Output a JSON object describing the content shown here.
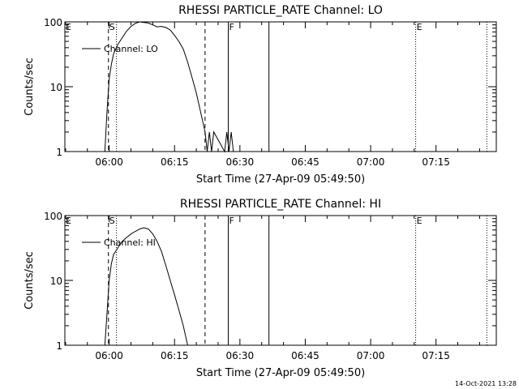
{
  "footer_timestamp": "14-Oct-2021 13:28",
  "chart_data": [
    {
      "type": "line",
      "title": "RHESSI PARTICLE_RATE Channel: LO",
      "xlabel": "Start Time (27-Apr-09 05:49:50)",
      "ylabel": "Counts/sec",
      "yscale": "log",
      "ylim": [
        1,
        100
      ],
      "xlim": [
        "05:49:50",
        "07:28:50"
      ],
      "x_ticks": [
        "06:00",
        "06:15",
        "06:30",
        "06:45",
        "07:00",
        "07:15"
      ],
      "y_ticks": [
        "1",
        "10",
        "100"
      ],
      "legend": "Channel: LO",
      "legend_position": "top-left",
      "event_markers": [
        {
          "label": "E",
          "time": "05:49:50",
          "style": "dotted"
        },
        {
          "label": "S",
          "time": "05:59:50",
          "style": "dashed"
        },
        {
          "label": "",
          "time": "06:01:40",
          "style": "dotted"
        },
        {
          "label": "",
          "time": "06:22:00",
          "style": "dashed"
        },
        {
          "label": "F",
          "time": "06:27:20",
          "style": "solid"
        },
        {
          "label": "",
          "time": "06:36:40",
          "style": "solid"
        },
        {
          "label": "E",
          "time": "07:10:20",
          "style": "dotted"
        },
        {
          "label": "",
          "time": "07:26:40",
          "style": "dotted"
        }
      ],
      "series": [
        {
          "x": [
            "05:59:00",
            "05:59:30",
            "06:00:00",
            "06:00:30",
            "06:01:00",
            "06:02:00",
            "06:03:00",
            "06:04:00",
            "06:05:00",
            "06:06:00",
            "06:07:00",
            "06:08:00",
            "06:09:00",
            "06:10:00",
            "06:11:00",
            "06:12:00",
            "06:13:00",
            "06:14:00",
            "06:15:00",
            "06:16:00",
            "06:17:00",
            "06:18:00",
            "06:19:00",
            "06:20:00",
            "06:21:00",
            "06:22:00",
            "06:22:30",
            "06:23:00",
            "06:23:30",
            "06:24:00",
            "06:26:30",
            "06:27:00",
            "06:27:30",
            "06:28:00",
            "06:28:30"
          ],
          "y": [
            1,
            4,
            13,
            22,
            32,
            45,
            57,
            72,
            85,
            95,
            100,
            98,
            96,
            90,
            84,
            85,
            82,
            75,
            62,
            50,
            38,
            24,
            14,
            8,
            4,
            2,
            1,
            2,
            1,
            2,
            1,
            2,
            1,
            2,
            1
          ]
        }
      ]
    },
    {
      "type": "line",
      "title": "RHESSI PARTICLE_RATE Channel: HI",
      "xlabel": "Start Time (27-Apr-09 05:49:50)",
      "ylabel": "Counts/sec",
      "yscale": "log",
      "ylim": [
        1,
        100
      ],
      "xlim": [
        "05:49:50",
        "07:28:50"
      ],
      "x_ticks": [
        "06:00",
        "06:15",
        "06:30",
        "06:45",
        "07:00",
        "07:15"
      ],
      "y_ticks": [
        "1",
        "10",
        "100"
      ],
      "legend": "Channel: HI",
      "legend_position": "top-left",
      "event_markers": [
        {
          "label": "E",
          "time": "05:49:50",
          "style": "dotted"
        },
        {
          "label": "S",
          "time": "05:59:50",
          "style": "dashed"
        },
        {
          "label": "",
          "time": "06:01:40",
          "style": "dotted"
        },
        {
          "label": "",
          "time": "06:22:00",
          "style": "dashed"
        },
        {
          "label": "F",
          "time": "06:27:20",
          "style": "solid"
        },
        {
          "label": "",
          "time": "06:36:40",
          "style": "solid"
        },
        {
          "label": "E",
          "time": "07:10:20",
          "style": "dotted"
        },
        {
          "label": "",
          "time": "07:26:40",
          "style": "dotted"
        }
      ],
      "series": [
        {
          "x": [
            "05:59:00",
            "05:59:30",
            "06:00:00",
            "06:00:30",
            "06:01:00",
            "06:02:00",
            "06:03:00",
            "06:04:00",
            "06:05:00",
            "06:06:00",
            "06:07:00",
            "06:08:00",
            "06:09:00",
            "06:10:00",
            "06:11:00",
            "06:12:00",
            "06:13:00",
            "06:14:00",
            "06:15:00",
            "06:16:00",
            "06:17:00",
            "06:18:00"
          ],
          "y": [
            1,
            3,
            10,
            18,
            25,
            32,
            40,
            46,
            52,
            57,
            62,
            65,
            62,
            52,
            40,
            28,
            17,
            10,
            6,
            3.5,
            2,
            1
          ]
        }
      ]
    }
  ]
}
